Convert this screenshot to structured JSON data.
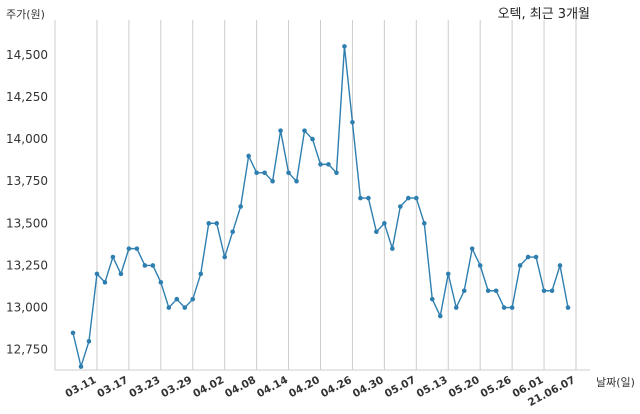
{
  "chart_data": {
    "type": "line",
    "title": "오텍, 최근 3개월",
    "xlabel": "날짜(일)",
    "ylabel": "주가(원)",
    "ylim": [
      12600,
      14600
    ],
    "yticks": [
      12750,
      13000,
      13250,
      13500,
      13750,
      14000,
      14250,
      14500
    ],
    "ytick_labels": [
      "12,750",
      "13,000",
      "13,250",
      "13,500",
      "13,750",
      "14,000",
      "14,250",
      "14,500"
    ],
    "xtick_labels": [
      "03.11",
      "03.17",
      "03.23",
      "03.29",
      "04.02",
      "04.08",
      "04.14",
      "04.20",
      "04.26",
      "04.30",
      "05.07",
      "05.13",
      "05.20",
      "05.26",
      "06.01",
      "21.06.07"
    ],
    "xtick_index": [
      3,
      7,
      11,
      15,
      19,
      23,
      27,
      31,
      35,
      39,
      43,
      47,
      51,
      55,
      59,
      63
    ],
    "grid": "vertical",
    "series": [
      {
        "color": "#2e7fb0",
        "values": [
          12850,
          12650,
          12800,
          13200,
          13150,
          13300,
          13200,
          13350,
          13350,
          13250,
          13250,
          13150,
          13000,
          13050,
          13000,
          13050,
          13200,
          13500,
          13500,
          13300,
          13450,
          13600,
          13900,
          13800,
          13800,
          13750,
          14050,
          13800,
          13750,
          14050,
          14000,
          13850,
          13850,
          13800,
          14550,
          14100,
          13650,
          13650,
          13450,
          13500,
          13350,
          13600,
          13650,
          13650,
          13500,
          13050,
          12950,
          13200,
          13000,
          13100,
          13350,
          13250,
          13100,
          13100,
          13000,
          13000,
          13250,
          13300,
          13300,
          13100,
          13100,
          13250,
          13000
        ]
      }
    ]
  }
}
